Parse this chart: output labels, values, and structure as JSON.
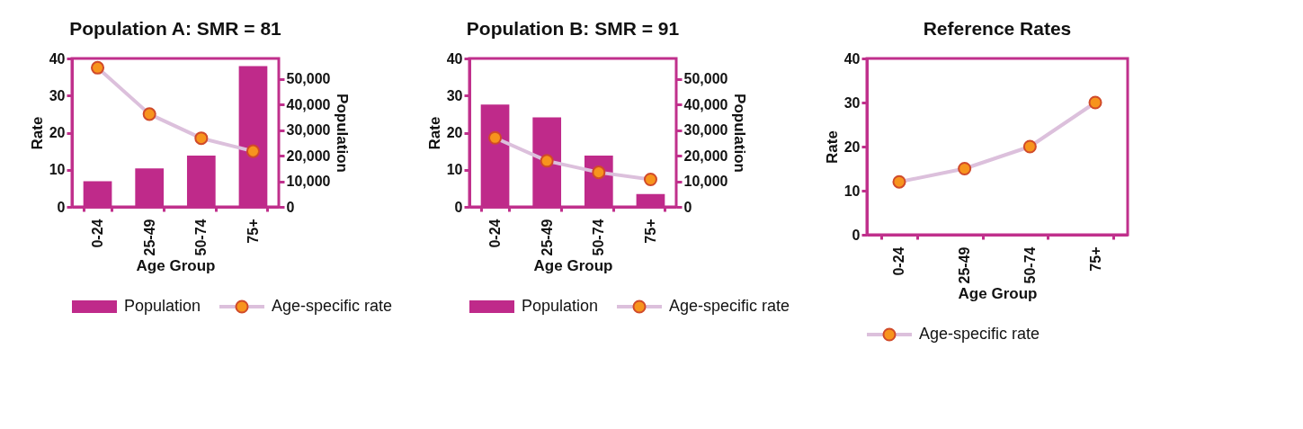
{
  "chart_data": [
    {
      "type": "bar",
      "title": "Population A: SMR = 81",
      "xlabel": "Age Group",
      "ylabel": "Rate",
      "y2label": "Population",
      "categories": [
        "0-24",
        "25-49",
        "50-74",
        "75+"
      ],
      "series": [
        {
          "name": "Population",
          "axis": "y2",
          "color": "#bf2a8a",
          "values": [
            10000,
            15000,
            20000,
            55000
          ]
        },
        {
          "name": "Age-specific rate",
          "type": "line",
          "color": "#dcc0dc",
          "values": [
            37.5,
            25,
            18.5,
            15
          ]
        }
      ],
      "ylim": [
        0,
        40
      ],
      "yticks": [
        0,
        10,
        20,
        30,
        40
      ],
      "y2lim": [
        0,
        58000
      ],
      "y2ticks": [
        0,
        {
          "value": 10000,
          "label": "10,000"
        },
        {
          "value": 20000,
          "label": "20,000"
        },
        {
          "value": 30000,
          "label": "30,000"
        },
        {
          "value": 40000,
          "label": "40,000"
        },
        {
          "value": 50000,
          "label": "50,000"
        }
      ],
      "grid": false,
      "legend": "bottom",
      "marker": "circle"
    },
    {
      "type": "bar",
      "title": "Population B: SMR = 91",
      "xlabel": "Age Group",
      "ylabel": "Rate",
      "y2label": "Population",
      "categories": [
        "0-24",
        "25-49",
        "50-74",
        "75+"
      ],
      "series": [
        {
          "name": "Population",
          "axis": "y2",
          "color": "#bf2a8a",
          "values": [
            40000,
            35000,
            20000,
            5000
          ]
        },
        {
          "name": "Age-specific rate",
          "type": "line",
          "color": "#dcc0dc",
          "values": [
            18.6,
            12.4,
            9.3,
            7.4
          ]
        }
      ],
      "ylim": [
        0,
        40
      ],
      "yticks": [
        0,
        10,
        20,
        30,
        40
      ],
      "y2lim": [
        0,
        58000
      ],
      "y2ticks": [
        0,
        {
          "value": 10000,
          "label": "10,000"
        },
        {
          "value": 20000,
          "label": "20,000"
        },
        {
          "value": 30000,
          "label": "30,000"
        },
        {
          "value": 40000,
          "label": "40,000"
        },
        {
          "value": 50000,
          "label": "50,000"
        }
      ],
      "grid": false,
      "legend": "bottom",
      "marker": "circle"
    },
    {
      "type": "line",
      "title": "Reference Rates",
      "xlabel": "Age Group",
      "ylabel": "Rate",
      "categories": [
        "0-24",
        "25-49",
        "50-74",
        "75+"
      ],
      "series": [
        {
          "name": "Age-specific rate",
          "color": "#dcc0dc",
          "values": [
            12,
            15,
            20,
            30
          ]
        }
      ],
      "ylim": [
        0,
        40
      ],
      "yticks": [
        0,
        10,
        20,
        30,
        40
      ],
      "grid": false,
      "legend": "bottom",
      "marker": "circle"
    }
  ]
}
